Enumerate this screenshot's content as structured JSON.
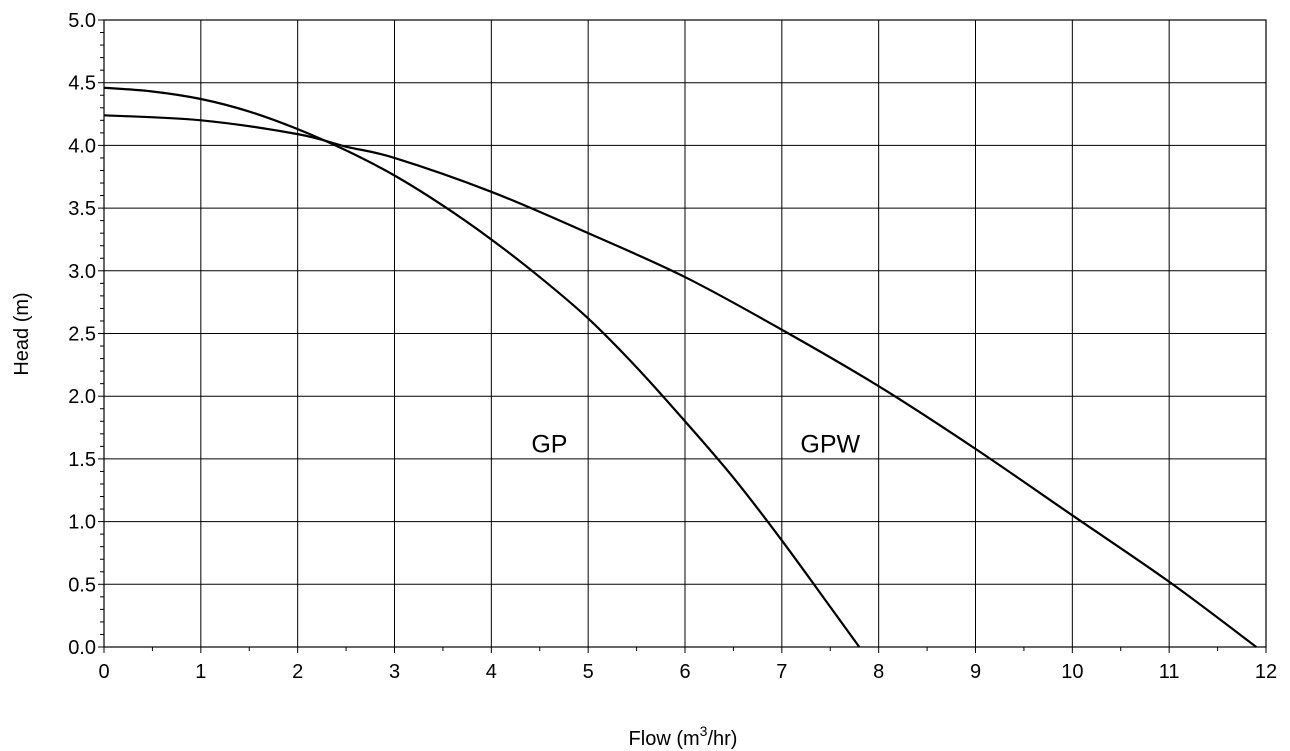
{
  "chart_data": {
    "type": "line",
    "xlabel": {
      "prefix": "Flow (m",
      "sup": "3",
      "suffix": "/hr)"
    },
    "ylabel": "Head (m)",
    "xlim": [
      0,
      12
    ],
    "ylim": [
      0,
      5.0
    ],
    "x_ticks": [
      "0",
      "1",
      "2",
      "3",
      "4",
      "5",
      "6",
      "7",
      "8",
      "9",
      "10",
      "11",
      "12"
    ],
    "y_ticks": [
      "0.0",
      "0.5",
      "1.0",
      "1.5",
      "2.0",
      "2.5",
      "3.0",
      "3.5",
      "4.0",
      "4.5",
      "5.0"
    ],
    "grid": true,
    "series": [
      {
        "name": "GP",
        "x": [
          0,
          0.5,
          1,
          1.5,
          2,
          2.5,
          3,
          3.5,
          4,
          4.5,
          5,
          5.5,
          6,
          6.5,
          7,
          7.5,
          7.8
        ],
        "y": [
          4.46,
          4.43,
          4.37,
          4.27,
          4.13,
          3.96,
          3.76,
          3.52,
          3.25,
          2.95,
          2.62,
          2.23,
          1.8,
          1.35,
          0.85,
          0.32,
          0.0
        ]
      },
      {
        "name": "GPW",
        "x": [
          0,
          1,
          2,
          2.5,
          3,
          4,
          5,
          6,
          7,
          8,
          9,
          10,
          11,
          11.9
        ],
        "y": [
          4.24,
          4.2,
          4.09,
          3.99,
          3.9,
          3.63,
          3.3,
          2.95,
          2.53,
          2.08,
          1.58,
          1.05,
          0.52,
          0.0
        ]
      }
    ],
    "annotations": [
      {
        "text": "GP",
        "x": 4.6,
        "y": 1.55
      },
      {
        "text": "GPW",
        "x": 7.5,
        "y": 1.55
      }
    ]
  }
}
